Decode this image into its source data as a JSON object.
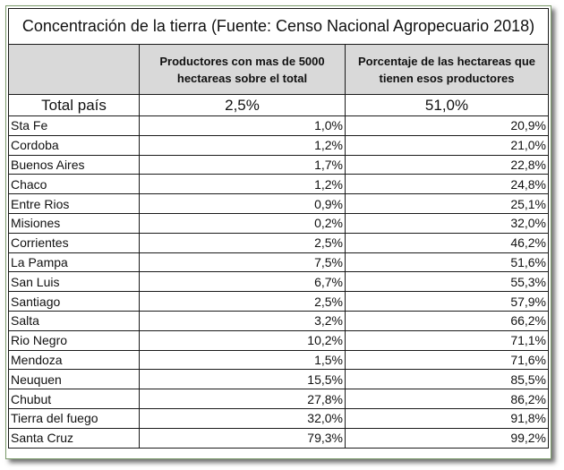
{
  "title": "Concentración de la tierra (Fuente: Censo Nacional Agropecuario 2018)",
  "headers": {
    "col1": "",
    "col2": "Productores con mas de 5000 hectareas sobre el total",
    "col3": "Porcentaje de las hectareas que tienen esos productores"
  },
  "total": {
    "label": "Total país",
    "productores": "2,5%",
    "hectareas": "51,0%"
  },
  "rows": [
    {
      "provincia": "Sta Fe",
      "productores": "1,0%",
      "hectareas": "20,9%"
    },
    {
      "provincia": "Cordoba",
      "productores": "1,2%",
      "hectareas": "21,0%"
    },
    {
      "provincia": "Buenos Aires",
      "productores": "1,7%",
      "hectareas": "22,8%"
    },
    {
      "provincia": "Chaco",
      "productores": "1,2%",
      "hectareas": "24,8%"
    },
    {
      "provincia": "Entre Rios",
      "productores": "0,9%",
      "hectareas": "25,1%"
    },
    {
      "provincia": "Misiones",
      "productores": "0,2%",
      "hectareas": "32,0%"
    },
    {
      "provincia": "Corrientes",
      "productores": "2,5%",
      "hectareas": "46,2%"
    },
    {
      "provincia": "La Pampa",
      "productores": "7,5%",
      "hectareas": "51,6%"
    },
    {
      "provincia": "San Luis",
      "productores": "6,7%",
      "hectareas": "55,3%"
    },
    {
      "provincia": "Santiago",
      "productores": "2,5%",
      "hectareas": "57,9%"
    },
    {
      "provincia": "Salta",
      "productores": "3,2%",
      "hectareas": "66,2%"
    },
    {
      "provincia": "Rio Negro",
      "productores": "10,2%",
      "hectareas": "71,1%"
    },
    {
      "provincia": "Mendoza",
      "productores": "1,5%",
      "hectareas": "71,6%"
    },
    {
      "provincia": "Neuquen",
      "productores": "15,5%",
      "hectareas": "85,5%"
    },
    {
      "provincia": "Chubut",
      "productores": "27,8%",
      "hectareas": "86,2%"
    },
    {
      "provincia": "Tierra del fuego",
      "productores": "32,0%",
      "hectareas": "91,8%"
    },
    {
      "provincia": "Santa Cruz",
      "productores": "79,3%",
      "hectareas": "99,2%"
    }
  ]
}
